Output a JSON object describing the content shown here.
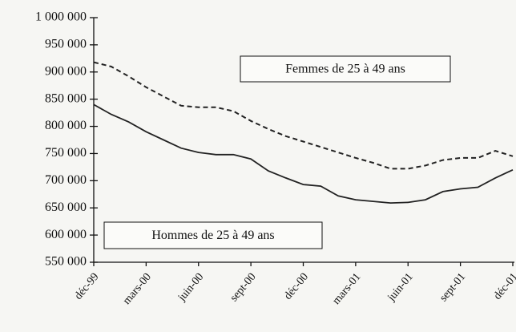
{
  "chart_data": {
    "type": "line",
    "categories": [
      "déc-99",
      null,
      null,
      "mars-00",
      null,
      null,
      "juin-00",
      null,
      null,
      "sept-00",
      null,
      null,
      "déc-00",
      null,
      null,
      "mars-01",
      null,
      null,
      "juin-01",
      null,
      null,
      "sept-01",
      null,
      null,
      "déc-01"
    ],
    "series": [
      {
        "name": "Femmes de 25 à 49 ans",
        "color": "#222222",
        "dash": true,
        "values": [
          918000,
          910000,
          892000,
          872000,
          855000,
          838000,
          835000,
          835000,
          828000,
          810000,
          795000,
          782000,
          772000,
          762000,
          752000,
          742000,
          733000,
          722000,
          722000,
          728000,
          738000,
          742000,
          742000,
          755000,
          745000
        ]
      },
      {
        "name": "Hommes de 25 à 49 ans",
        "color": "#222222",
        "dash": false,
        "values": [
          840000,
          822000,
          808000,
          790000,
          775000,
          760000,
          752000,
          748000,
          748000,
          740000,
          718000,
          705000,
          693000,
          690000,
          672000,
          665000,
          662000,
          659000,
          660000,
          665000,
          680000,
          685000,
          688000,
          705000,
          720000
        ]
      }
    ],
    "ylim": [
      550000,
      1000000
    ],
    "yticks": [
      {
        "value": 550000,
        "label": "550 000"
      },
      {
        "value": 600000,
        "label": "600 000"
      },
      {
        "value": 650000,
        "label": "650 000"
      },
      {
        "value": 700000,
        "label": "700 000"
      },
      {
        "value": 750000,
        "label": "750 000"
      },
      {
        "value": 800000,
        "label": "800 000"
      },
      {
        "value": 850000,
        "label": "850 000"
      },
      {
        "value": 900000,
        "label": "900 000"
      },
      {
        "value": 950000,
        "label": "950 000"
      },
      {
        "value": 1000000,
        "label": "1 000 000"
      }
    ],
    "grid": false
  }
}
